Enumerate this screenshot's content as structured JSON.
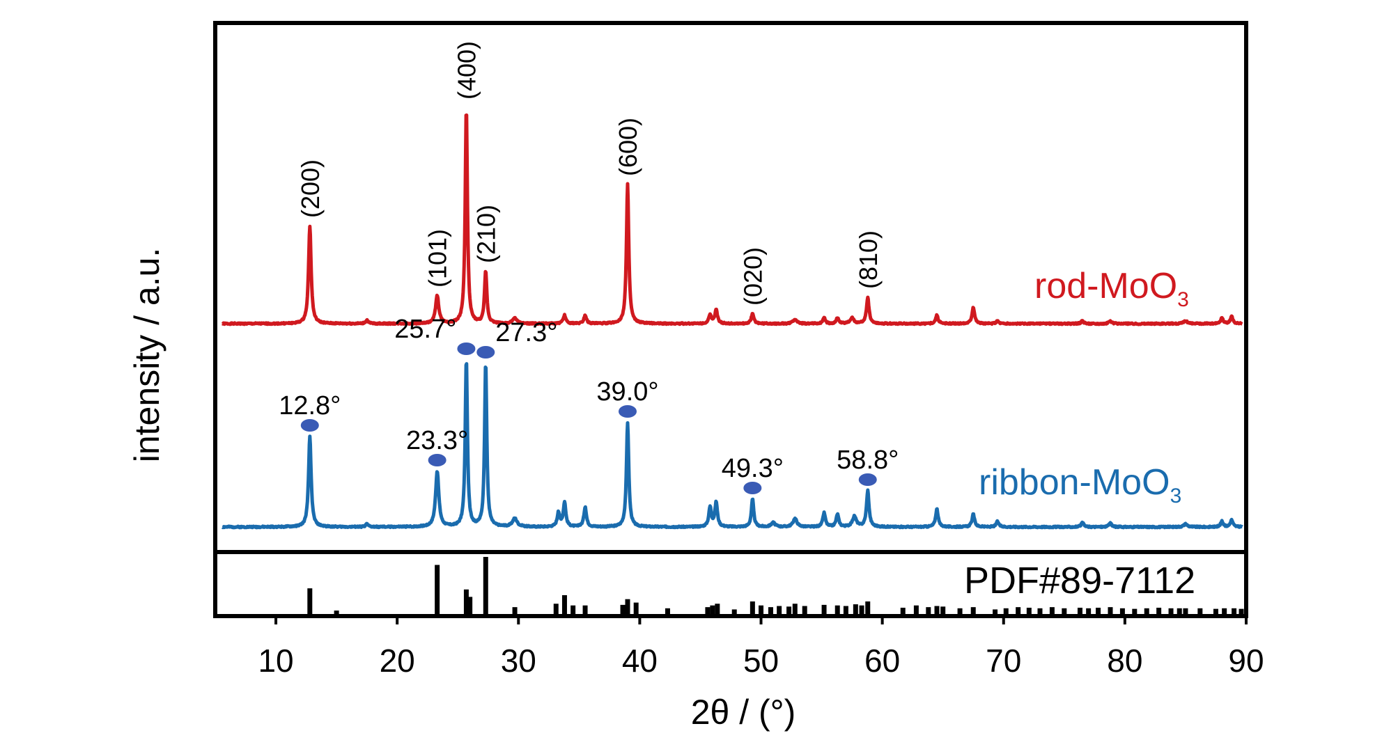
{
  "chart_data": {
    "type": "line",
    "xlabel": "2θ / (°)",
    "ylabel": "intensity / a.u.",
    "xlim": [
      5,
      90
    ],
    "x_ticks": [
      "10",
      "20",
      "30",
      "40",
      "50",
      "60",
      "70",
      "80",
      "90"
    ],
    "x_tick_values": [
      10,
      20,
      30,
      40,
      50,
      60,
      70,
      80,
      90
    ],
    "grid": false,
    "series": [
      {
        "name": "rod-MoO",
        "name_sub": "3",
        "color": "#d0191f",
        "baseline": 0,
        "noise": 2,
        "peaks": [
          {
            "x": 12.8,
            "h": 140,
            "w": 0.2
          },
          {
            "x": 17.5,
            "h": 5,
            "w": 0.2
          },
          {
            "x": 23.3,
            "h": 40,
            "w": 0.25
          },
          {
            "x": 25.7,
            "h": 310,
            "w": 0.17
          },
          {
            "x": 27.3,
            "h": 75,
            "w": 0.18
          },
          {
            "x": 29.7,
            "h": 8,
            "w": 0.3
          },
          {
            "x": 33.8,
            "h": 12,
            "w": 0.2
          },
          {
            "x": 35.5,
            "h": 12,
            "w": 0.2
          },
          {
            "x": 39.0,
            "h": 200,
            "w": 0.18
          },
          {
            "x": 45.8,
            "h": 12,
            "w": 0.2
          },
          {
            "x": 46.3,
            "h": 20,
            "w": 0.2
          },
          {
            "x": 49.3,
            "h": 14,
            "w": 0.2
          },
          {
            "x": 52.8,
            "h": 6,
            "w": 0.3
          },
          {
            "x": 55.2,
            "h": 8,
            "w": 0.2
          },
          {
            "x": 56.3,
            "h": 8,
            "w": 0.2
          },
          {
            "x": 57.5,
            "h": 8,
            "w": 0.3
          },
          {
            "x": 58.8,
            "h": 38,
            "w": 0.2
          },
          {
            "x": 64.5,
            "h": 12,
            "w": 0.2
          },
          {
            "x": 67.5,
            "h": 24,
            "w": 0.2
          },
          {
            "x": 69.5,
            "h": 4,
            "w": 0.2
          },
          {
            "x": 76.5,
            "h": 4,
            "w": 0.2
          },
          {
            "x": 78.8,
            "h": 4,
            "w": 0.2
          },
          {
            "x": 85.0,
            "h": 4,
            "w": 0.3
          },
          {
            "x": 88.0,
            "h": 8,
            "w": 0.2
          },
          {
            "x": 88.8,
            "h": 10,
            "w": 0.2
          }
        ]
      },
      {
        "name": "ribbon-MoO",
        "name_sub": "3",
        "color": "#1a6cae",
        "baseline": 0,
        "noise": 2,
        "peaks": [
          {
            "x": 12.8,
            "h": 130,
            "w": 0.2
          },
          {
            "x": 17.5,
            "h": 4,
            "w": 0.2
          },
          {
            "x": 23.3,
            "h": 80,
            "w": 0.25
          },
          {
            "x": 25.7,
            "h": 240,
            "w": 0.17
          },
          {
            "x": 27.3,
            "h": 235,
            "w": 0.17
          },
          {
            "x": 29.7,
            "h": 12,
            "w": 0.35
          },
          {
            "x": 33.3,
            "h": 20,
            "w": 0.2
          },
          {
            "x": 33.8,
            "h": 35,
            "w": 0.2
          },
          {
            "x": 35.5,
            "h": 28,
            "w": 0.2
          },
          {
            "x": 39.0,
            "h": 150,
            "w": 0.18
          },
          {
            "x": 45.8,
            "h": 28,
            "w": 0.2
          },
          {
            "x": 46.3,
            "h": 35,
            "w": 0.2
          },
          {
            "x": 49.3,
            "h": 40,
            "w": 0.18
          },
          {
            "x": 51.0,
            "h": 6,
            "w": 0.3
          },
          {
            "x": 52.8,
            "h": 12,
            "w": 0.3
          },
          {
            "x": 55.2,
            "h": 20,
            "w": 0.2
          },
          {
            "x": 56.3,
            "h": 18,
            "w": 0.2
          },
          {
            "x": 57.7,
            "h": 15,
            "w": 0.3
          },
          {
            "x": 58.8,
            "h": 52,
            "w": 0.2
          },
          {
            "x": 64.5,
            "h": 26,
            "w": 0.2
          },
          {
            "x": 67.5,
            "h": 18,
            "w": 0.2
          },
          {
            "x": 69.5,
            "h": 8,
            "w": 0.2
          },
          {
            "x": 76.5,
            "h": 6,
            "w": 0.2
          },
          {
            "x": 78.8,
            "h": 6,
            "w": 0.2
          },
          {
            "x": 85.0,
            "h": 4,
            "w": 0.3
          },
          {
            "x": 88.0,
            "h": 8,
            "w": 0.2
          },
          {
            "x": 88.8,
            "h": 10,
            "w": 0.2
          }
        ]
      }
    ],
    "reference": {
      "name": "PDF#89-7112",
      "lines": [
        {
          "x": 12.8,
          "h": 0.45
        },
        {
          "x": 15.0,
          "h": 0.06
        },
        {
          "x": 23.3,
          "h": 0.86
        },
        {
          "x": 25.7,
          "h": 0.43
        },
        {
          "x": 26.0,
          "h": 0.3
        },
        {
          "x": 27.3,
          "h": 1.0
        },
        {
          "x": 29.7,
          "h": 0.12
        },
        {
          "x": 33.1,
          "h": 0.18
        },
        {
          "x": 33.8,
          "h": 0.33
        },
        {
          "x": 34.5,
          "h": 0.15
        },
        {
          "x": 35.5,
          "h": 0.15
        },
        {
          "x": 38.6,
          "h": 0.16
        },
        {
          "x": 39.0,
          "h": 0.26
        },
        {
          "x": 39.7,
          "h": 0.2
        },
        {
          "x": 42.3,
          "h": 0.1
        },
        {
          "x": 45.6,
          "h": 0.12
        },
        {
          "x": 46.0,
          "h": 0.15
        },
        {
          "x": 46.4,
          "h": 0.18
        },
        {
          "x": 47.8,
          "h": 0.08
        },
        {
          "x": 49.3,
          "h": 0.22
        },
        {
          "x": 50.0,
          "h": 0.15
        },
        {
          "x": 50.8,
          "h": 0.12
        },
        {
          "x": 51.5,
          "h": 0.14
        },
        {
          "x": 52.3,
          "h": 0.13
        },
        {
          "x": 52.8,
          "h": 0.18
        },
        {
          "x": 53.6,
          "h": 0.14
        },
        {
          "x": 55.2,
          "h": 0.16
        },
        {
          "x": 56.3,
          "h": 0.15
        },
        {
          "x": 57.0,
          "h": 0.14
        },
        {
          "x": 57.8,
          "h": 0.17
        },
        {
          "x": 58.3,
          "h": 0.15
        },
        {
          "x": 58.8,
          "h": 0.22
        },
        {
          "x": 61.7,
          "h": 0.11
        },
        {
          "x": 62.8,
          "h": 0.15
        },
        {
          "x": 63.8,
          "h": 0.12
        },
        {
          "x": 64.5,
          "h": 0.14
        },
        {
          "x": 65.0,
          "h": 0.13
        },
        {
          "x": 66.4,
          "h": 0.1
        },
        {
          "x": 67.5,
          "h": 0.12
        },
        {
          "x": 69.3,
          "h": 0.08
        },
        {
          "x": 70.2,
          "h": 0.1
        },
        {
          "x": 71.2,
          "h": 0.12
        },
        {
          "x": 72.1,
          "h": 0.11
        },
        {
          "x": 73.0,
          "h": 0.1
        },
        {
          "x": 74.0,
          "h": 0.12
        },
        {
          "x": 75.0,
          "h": 0.1
        },
        {
          "x": 76.3,
          "h": 0.11
        },
        {
          "x": 77.0,
          "h": 0.1
        },
        {
          "x": 77.8,
          "h": 0.11
        },
        {
          "x": 78.8,
          "h": 0.12
        },
        {
          "x": 79.8,
          "h": 0.1
        },
        {
          "x": 80.8,
          "h": 0.09
        },
        {
          "x": 81.8,
          "h": 0.1
        },
        {
          "x": 82.8,
          "h": 0.11
        },
        {
          "x": 83.8,
          "h": 0.1
        },
        {
          "x": 84.5,
          "h": 0.1
        },
        {
          "x": 85.0,
          "h": 0.1
        },
        {
          "x": 86.2,
          "h": 0.1
        },
        {
          "x": 87.5,
          "h": 0.09
        },
        {
          "x": 88.2,
          "h": 0.1
        },
        {
          "x": 89.0,
          "h": 0.1
        },
        {
          "x": 89.6,
          "h": 0.09
        }
      ]
    },
    "hkl_labels": [
      {
        "text": "(200)",
        "x": 12.8
      },
      {
        "text": "(101)",
        "x": 23.3
      },
      {
        "text": "(400)",
        "x": 25.7
      },
      {
        "text": "(210)",
        "x": 27.3
      },
      {
        "text": "(600)",
        "x": 39.0
      },
      {
        "text": "(020)",
        "x": 49.3
      },
      {
        "text": "(810)",
        "x": 58.8
      }
    ],
    "angle_labels": [
      {
        "text": "12.8°",
        "x": 12.8
      },
      {
        "text": "23.3°",
        "x": 23.3
      },
      {
        "text": "25.7°",
        "x": 25.7
      },
      {
        "text": "27.3°",
        "x": 27.3
      },
      {
        "text": "39.0°",
        "x": 39.0
      },
      {
        "text": "49.3°",
        "x": 49.3
      },
      {
        "text": "58.8°",
        "x": 58.8
      }
    ],
    "marker_color": "#3a5bb5"
  }
}
